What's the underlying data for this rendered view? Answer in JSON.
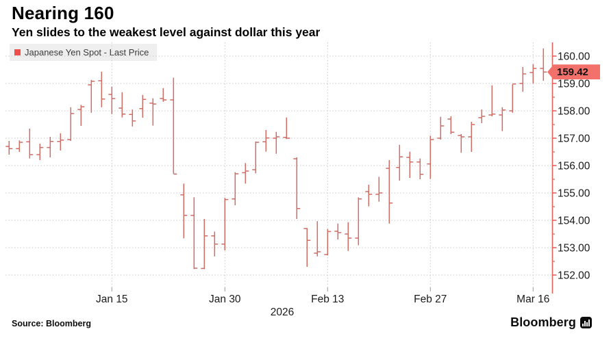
{
  "header": {
    "title": "Nearing 160",
    "subtitle": "Yen slides to the weakest level against dollar this year"
  },
  "legend": {
    "label": "Japanese Yen Spot - Last Price",
    "marker_color": "#ef4f4a",
    "background": "#efefef"
  },
  "footer": {
    "source": "Source: Bloomberg",
    "brand": "Bloomberg"
  },
  "colors": {
    "bar": "#cb5f57",
    "axis_line": "#e2625b",
    "grid": "#c9c9c9",
    "text": "#1a1a1a",
    "tag_background": "#f3716a"
  },
  "chart_data": {
    "type": "ohlc",
    "title": "Nearing 160",
    "series_name": "Japanese Yen Spot - Last Price",
    "ylabel": "",
    "xlabel": "",
    "ylim": [
      151.55,
      160.5
    ],
    "grid": "dotted",
    "legend_position": "top-left",
    "y_ticks": [
      160,
      159,
      158,
      157,
      156,
      155,
      154,
      153,
      152
    ],
    "y_minor_tick_step": 0.5,
    "x_tick_labels": [
      {
        "label": "Jan 15",
        "bar_index": 10
      },
      {
        "label": "Jan 30",
        "bar_index": 21
      },
      {
        "label": "Feb 13",
        "bar_index": 31
      },
      {
        "label": "Feb 27",
        "bar_index": 41
      },
      {
        "label": "Mar 16",
        "bar_index": 51
      }
    ],
    "year_label": "2026",
    "last_price": 159.42,
    "last_price_label": "159.42",
    "bars_ohlc": [
      [
        156.7,
        156.9,
        156.4,
        156.62
      ],
      [
        156.62,
        156.92,
        156.5,
        156.85
      ],
      [
        156.87,
        157.35,
        156.26,
        156.4
      ],
      [
        156.4,
        156.8,
        156.2,
        156.66
      ],
      [
        156.66,
        157.05,
        156.3,
        156.88
      ],
      [
        156.88,
        157.18,
        156.55,
        156.93
      ],
      [
        156.95,
        158.13,
        156.9,
        157.9
      ],
      [
        158.05,
        158.22,
        157.45,
        158.15
      ],
      [
        158.95,
        159.13,
        157.93,
        159.08
      ],
      [
        159.1,
        159.43,
        158.13,
        158.43
      ],
      [
        158.6,
        158.88,
        157.88,
        158.45
      ],
      [
        158.1,
        158.68,
        157.76,
        157.88
      ],
      [
        157.87,
        158.05,
        157.43,
        157.63
      ],
      [
        158.08,
        158.58,
        157.75,
        158.42
      ],
      [
        158.28,
        158.46,
        157.46,
        158.25
      ],
      [
        158.45,
        158.83,
        158.33,
        158.4
      ],
      [
        158.4,
        159.21,
        155.71,
        155.69
      ],
      [
        154.93,
        155.34,
        153.34,
        154.18
      ],
      [
        154.18,
        154.84,
        152.22,
        152.25
      ],
      [
        152.24,
        154.05,
        152.22,
        153.43
      ],
      [
        153.43,
        153.59,
        152.68,
        153.13
      ],
      [
        153.13,
        154.82,
        152.9,
        154.76
      ],
      [
        154.78,
        155.76,
        154.55,
        155.7
      ],
      [
        155.74,
        156.09,
        155.34,
        155.8
      ],
      [
        155.85,
        156.88,
        155.72,
        156.85
      ],
      [
        156.87,
        157.3,
        156.51,
        157.01
      ],
      [
        157.0,
        157.23,
        156.43,
        157.05
      ],
      [
        157.03,
        157.76,
        156.97,
        157.0
      ],
      [
        156.25,
        156.3,
        154.05,
        154.43
      ],
      [
        153.7,
        153.72,
        152.3,
        153.27
      ],
      [
        152.8,
        153.97,
        152.68,
        152.85
      ],
      [
        152.75,
        153.68,
        152.72,
        153.59
      ],
      [
        153.6,
        153.88,
        153.3,
        153.55
      ],
      [
        153.5,
        153.93,
        152.88,
        153.35
      ],
      [
        153.35,
        154.84,
        153.09,
        154.78
      ],
      [
        155.05,
        155.3,
        154.51,
        154.95
      ],
      [
        154.95,
        155.59,
        154.68,
        155.0
      ],
      [
        155.9,
        156.2,
        153.88,
        154.63
      ],
      [
        155.93,
        156.76,
        155.45,
        156.32
      ],
      [
        156.3,
        156.51,
        155.55,
        156.13
      ],
      [
        156.13,
        156.26,
        155.5,
        155.68
      ],
      [
        156.06,
        157.09,
        155.51,
        156.95
      ],
      [
        157.0,
        157.78,
        156.95,
        157.45
      ],
      [
        157.7,
        157.8,
        157.15,
        157.22
      ],
      [
        157.1,
        157.15,
        156.47,
        157.05
      ],
      [
        157.05,
        157.6,
        156.5,
        157.5
      ],
      [
        157.75,
        158.05,
        157.55,
        157.8
      ],
      [
        157.85,
        158.93,
        157.8,
        157.88
      ],
      [
        157.85,
        158.13,
        157.26,
        158.03
      ],
      [
        158.0,
        158.97,
        157.93,
        158.98
      ],
      [
        159.0,
        159.6,
        158.7,
        159.35
      ],
      [
        159.4,
        159.7,
        159.0,
        159.55
      ],
      [
        159.55,
        160.28,
        159.1,
        159.42
      ]
    ]
  }
}
